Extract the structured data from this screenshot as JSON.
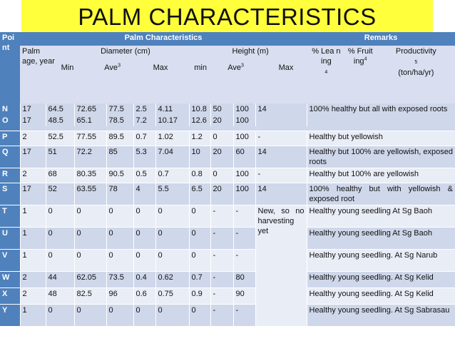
{
  "title": "PALM CHARACTERISTICS",
  "header": {
    "point": "Poi nt",
    "group": "Palm Characteristics",
    "remarks": "Remarks",
    "palm_age": "Palm age, year",
    "diameter": "Diameter (cm)",
    "height": "Height (m)",
    "leaning": "% Lea n ing",
    "leaning_sup": "4",
    "fruiting": "% Fruit ing",
    "fruiting_sup": "4",
    "productivity": "Productivity",
    "productivity_sup": "5",
    "productivity_unit": "(ton/ha/yr)",
    "d_min": "Min",
    "d_ave": "Ave",
    "d_ave_sup": "3",
    "d_max": "Max",
    "h_min": "min",
    "h_ave": "Ave",
    "h_ave_sup": "3",
    "h_max": "Max"
  },
  "rows": [
    {
      "point": "N",
      "age": "17",
      "dmin": "64.5",
      "dave": "72.65",
      "dmax": "77.5",
      "hmin": "2.5",
      "have": "4.11",
      "hmax": "10.8",
      "lean": "50",
      "fruit": "100"
    },
    {
      "point": "O",
      "age": "17",
      "dmin": "48.5",
      "dave": "65.1",
      "dmax": "78.5",
      "hmin": "7.2",
      "have": "10.17",
      "hmax": "12.6",
      "lean": "20",
      "fruit": "100"
    },
    {
      "point": "P",
      "age": "2",
      "dmin": "52.5",
      "dave": "77.55",
      "dmax": "89.5",
      "hmin": "0.7",
      "have": "1.02",
      "hmax": "1.2",
      "lean": "0",
      "fruit": "100",
      "prod": "-",
      "remark": "Healthy but yellowish"
    },
    {
      "point": "Q",
      "age": "17",
      "dmin": "51",
      "dave": "72.2",
      "dmax": "85",
      "hmin": "5.3",
      "have": "7.04",
      "hmax": "10",
      "lean": "20",
      "fruit": "60",
      "prod": "14",
      "remark": "Healthy but 100% are yellowish, exposed roots"
    },
    {
      "point": "R",
      "age": "2",
      "dmin": "68",
      "dave": "80.35",
      "dmax": "90.5",
      "hmin": "0.5",
      "have": "0.7",
      "hmax": "0.8",
      "lean": "0",
      "fruit": "100",
      "prod": "-",
      "remark": "Healthy but 100% are yellowish"
    },
    {
      "point": "S",
      "age": "17",
      "dmin": "52",
      "dave": "63.55",
      "dmax": "78",
      "hmin": "4",
      "have": "5.5",
      "hmax": "6.5",
      "lean": "20",
      "fruit": "100",
      "prod": "14",
      "remark": "100% healthy but with yellowish & exposed root"
    },
    {
      "point": "T",
      "age": "1",
      "dmin": "0",
      "dave": "0",
      "dmax": "0",
      "hmin": "0",
      "have": "0",
      "hmax": "0",
      "lean": "-",
      "fruit": "-",
      "remark": "Healthy young seedling At Sg Baoh"
    },
    {
      "point": "U",
      "age": "1",
      "dmin": "0",
      "dave": "0",
      "dmax": "0",
      "hmin": "0",
      "have": "0",
      "hmax": "0",
      "lean": "-",
      "fruit": "-",
      "remark": "Healthy young seedling At Sg Baoh"
    },
    {
      "point": "V",
      "age": "1",
      "dmin": "0",
      "dave": "0",
      "dmax": "0",
      "hmin": "0",
      "have": "0",
      "hmax": "0",
      "lean": "-",
      "fruit": "-",
      "remark": "Healthy young seedling. At Sg Narub"
    },
    {
      "point": "W",
      "age": "2",
      "dmin": "44",
      "dave": "62.05",
      "dmax": "73.5",
      "hmin": "0.4",
      "have": "0.62",
      "hmax": "0.7",
      "lean": "-",
      "fruit": "80",
      "remark": "Healthy young seedling. At Sg Kelid"
    },
    {
      "point": "X",
      "age": "2",
      "dmin": "48",
      "dave": "82.5",
      "dmax": "96",
      "hmin": "0.6",
      "have": "0.75",
      "hmax": "0.9",
      "lean": "-",
      "fruit": "90",
      "remark": "Healthy young seedling. At Sg Kelid"
    },
    {
      "point": "Y",
      "age": "1",
      "dmin": "0",
      "dave": "0",
      "dmax": "0",
      "hmin": "0",
      "have": "0",
      "hmax": "0",
      "lean": "-",
      "fruit": "-",
      "remark": "Healthy young seedling. At Sg Sabrasau"
    }
  ],
  "merged": {
    "no_prod": "14",
    "no_remark": "100% healthy but all with exposed roots",
    "ty_prod": "New, so no harvesting yet"
  }
}
